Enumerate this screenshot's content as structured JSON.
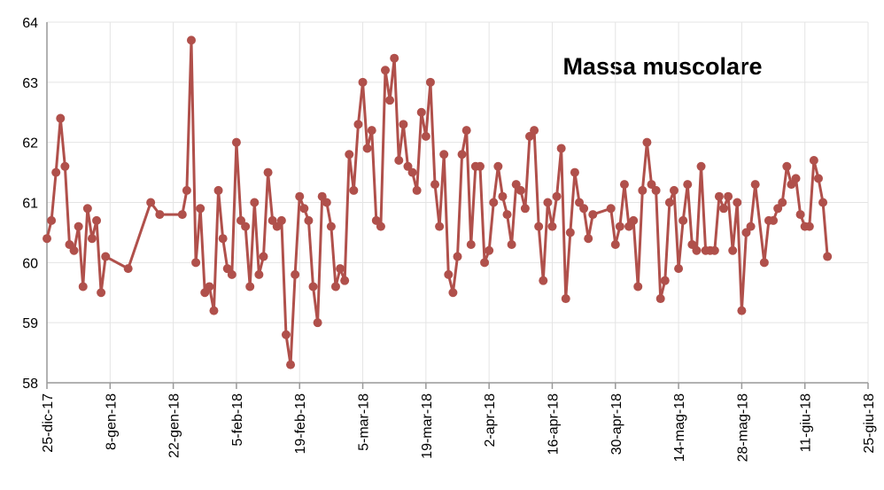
{
  "chart_data": {
    "type": "line",
    "title": "Massa muscolare",
    "color": "#b0504b",
    "grid": true,
    "xlim": [
      "2017-12-25",
      "2018-06-25"
    ],
    "xticks": [
      {
        "value": "2017-12-25",
        "label": "25-dic-17"
      },
      {
        "value": "2018-01-08",
        "label": "8-gen-18"
      },
      {
        "value": "2018-01-22",
        "label": "22-gen-18"
      },
      {
        "value": "2018-02-05",
        "label": "5-feb-18"
      },
      {
        "value": "2018-02-19",
        "label": "19-feb-18"
      },
      {
        "value": "2018-03-05",
        "label": "5-mar-18"
      },
      {
        "value": "2018-03-19",
        "label": "19-mar-18"
      },
      {
        "value": "2018-04-02",
        "label": "2-apr-18"
      },
      {
        "value": "2018-04-16",
        "label": "16-apr-18"
      },
      {
        "value": "2018-04-30",
        "label": "30-apr-18"
      },
      {
        "value": "2018-05-14",
        "label": "14-mag-18"
      },
      {
        "value": "2018-05-28",
        "label": "28-mag-18"
      },
      {
        "value": "2018-06-11",
        "label": "11-giu-18"
      },
      {
        "value": "2018-06-25",
        "label": "25-giu-18"
      }
    ],
    "ylim": [
      58,
      64
    ],
    "yticks": [
      58,
      59,
      60,
      61,
      62,
      63,
      64
    ],
    "x": [
      "2017-12-25",
      "2017-12-26",
      "2017-12-27",
      "2017-12-28",
      "2017-12-29",
      "2017-12-30",
      "2017-12-31",
      "2018-01-01",
      "2018-01-02",
      "2018-01-03",
      "2018-01-04",
      "2018-01-05",
      "2018-01-06",
      "2018-01-07",
      "2018-01-12",
      "2018-01-17",
      "2018-01-19",
      "2018-01-24",
      "2018-01-25",
      "2018-01-26",
      "2018-01-27",
      "2018-01-28",
      "2018-01-29",
      "2018-01-30",
      "2018-01-31",
      "2018-02-01",
      "2018-02-02",
      "2018-02-03",
      "2018-02-04",
      "2018-02-05",
      "2018-02-06",
      "2018-02-07",
      "2018-02-08",
      "2018-02-09",
      "2018-02-10",
      "2018-02-11",
      "2018-02-12",
      "2018-02-13",
      "2018-02-14",
      "2018-02-15",
      "2018-02-16",
      "2018-02-17",
      "2018-02-18",
      "2018-02-19",
      "2018-02-20",
      "2018-02-21",
      "2018-02-22",
      "2018-02-23",
      "2018-02-24",
      "2018-02-25",
      "2018-02-26",
      "2018-02-27",
      "2018-02-28",
      "2018-03-01",
      "2018-03-02",
      "2018-03-03",
      "2018-03-04",
      "2018-03-05",
      "2018-03-06",
      "2018-03-07",
      "2018-03-08",
      "2018-03-09",
      "2018-03-10",
      "2018-03-11",
      "2018-03-12",
      "2018-03-13",
      "2018-03-14",
      "2018-03-15",
      "2018-03-16",
      "2018-03-17",
      "2018-03-18",
      "2018-03-19",
      "2018-03-20",
      "2018-03-21",
      "2018-03-22",
      "2018-03-23",
      "2018-03-24",
      "2018-03-25",
      "2018-03-26",
      "2018-03-27",
      "2018-03-28",
      "2018-03-29",
      "2018-03-30",
      "2018-03-31",
      "2018-04-01",
      "2018-04-02",
      "2018-04-03",
      "2018-04-04",
      "2018-04-05",
      "2018-04-06",
      "2018-04-07",
      "2018-04-08",
      "2018-04-09",
      "2018-04-10",
      "2018-04-11",
      "2018-04-12",
      "2018-04-13",
      "2018-04-14",
      "2018-04-15",
      "2018-04-16",
      "2018-04-17",
      "2018-04-18",
      "2018-04-19",
      "2018-04-20",
      "2018-04-21",
      "2018-04-22",
      "2018-04-23",
      "2018-04-24",
      "2018-04-25",
      "2018-04-29",
      "2018-04-30",
      "2018-05-01",
      "2018-05-02",
      "2018-05-03",
      "2018-05-04",
      "2018-05-05",
      "2018-05-06",
      "2018-05-07",
      "2018-05-08",
      "2018-05-09",
      "2018-05-10",
      "2018-05-11",
      "2018-05-12",
      "2018-05-13",
      "2018-05-14",
      "2018-05-15",
      "2018-05-16",
      "2018-05-17",
      "2018-05-18",
      "2018-05-19",
      "2018-05-20",
      "2018-05-21",
      "2018-05-22",
      "2018-05-23",
      "2018-05-24",
      "2018-05-25",
      "2018-05-26",
      "2018-05-27",
      "2018-05-28",
      "2018-05-29",
      "2018-05-30",
      "2018-05-31",
      "2018-06-02",
      "2018-06-03",
      "2018-06-04",
      "2018-06-05",
      "2018-06-06",
      "2018-06-07",
      "2018-06-08",
      "2018-06-09",
      "2018-06-10",
      "2018-06-11",
      "2018-06-12",
      "2018-06-13",
      "2018-06-14",
      "2018-06-15",
      "2018-06-16"
    ],
    "values": [
      60.4,
      60.7,
      61.5,
      62.4,
      61.6,
      60.3,
      60.2,
      60.6,
      59.6,
      60.9,
      60.4,
      60.7,
      59.5,
      60.1,
      59.9,
      61.0,
      60.8,
      60.8,
      61.2,
      63.7,
      60.0,
      60.9,
      59.5,
      59.6,
      59.2,
      61.2,
      60.4,
      59.9,
      59.8,
      62.0,
      60.7,
      60.6,
      59.6,
      61.0,
      59.8,
      60.1,
      61.5,
      60.7,
      60.6,
      60.7,
      58.8,
      58.3,
      59.8,
      61.1,
      60.9,
      60.7,
      59.6,
      59.0,
      61.1,
      61.0,
      60.6,
      59.6,
      59.9,
      59.7,
      61.8,
      61.2,
      62.3,
      63.0,
      61.9,
      62.2,
      60.7,
      60.6,
      63.2,
      62.7,
      63.4,
      61.7,
      62.3,
      61.6,
      61.5,
      61.2,
      62.5,
      62.1,
      63.0,
      61.3,
      60.6,
      61.8,
      59.8,
      59.5,
      60.1,
      61.8,
      62.2,
      60.3,
      61.6,
      61.6,
      60.0,
      60.2,
      61.0,
      61.6,
      61.1,
      60.8,
      60.3,
      61.3,
      61.2,
      60.9,
      62.1,
      62.2,
      60.6,
      59.7,
      61.0,
      60.6,
      61.1,
      61.9,
      59.4,
      60.5,
      61.5,
      61.0,
      60.9,
      60.4,
      60.8,
      60.9,
      60.3,
      60.6,
      61.3,
      60.6,
      60.7,
      59.6,
      61.2,
      62.0,
      61.3,
      61.2,
      59.4,
      59.7,
      61.0,
      61.2,
      59.9,
      60.7,
      61.3,
      60.3,
      60.2,
      61.6,
      60.2,
      60.2,
      60.2,
      61.1,
      60.9,
      61.1,
      60.2,
      61.0,
      59.2,
      60.5,
      60.6,
      61.3,
      60.0,
      60.7,
      60.7,
      60.9,
      61.0,
      61.6,
      61.3,
      61.4,
      60.8,
      60.6,
      60.6,
      61.7,
      61.4,
      61.0,
      60.1
    ]
  }
}
